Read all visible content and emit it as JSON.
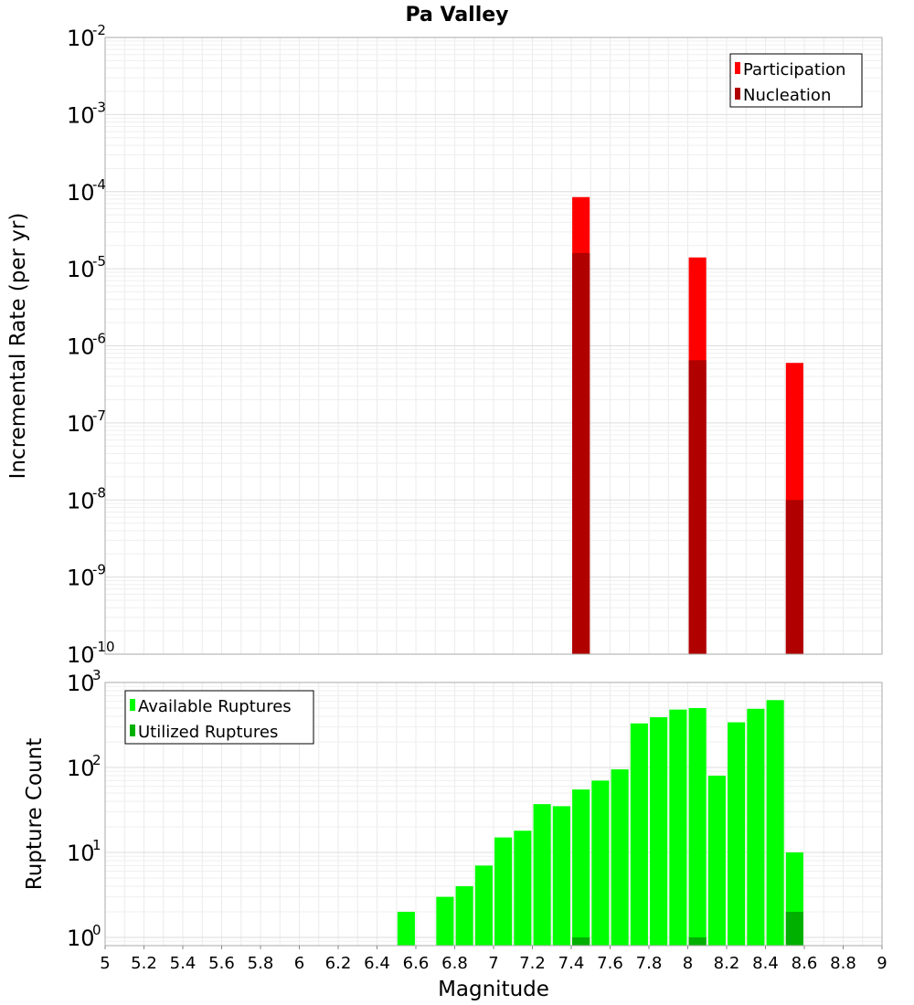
{
  "chart_data": [
    {
      "type": "bar",
      "title": "Pa Valley",
      "ylabel": "Incremental Rate (per yr)",
      "yscale": "log",
      "ylim": [
        1e-10,
        0.01
      ],
      "xlim": [
        5,
        9
      ],
      "y_tick_labels": [
        {
          "base": "10",
          "exp": "-2"
        },
        {
          "base": "10",
          "exp": "-3"
        },
        {
          "base": "10",
          "exp": "-4"
        },
        {
          "base": "10",
          "exp": "-5"
        },
        {
          "base": "10",
          "exp": "-6"
        },
        {
          "base": "10",
          "exp": "-7"
        },
        {
          "base": "10",
          "exp": "-8"
        },
        {
          "base": "10",
          "exp": "-9"
        },
        {
          "base": "10",
          "exp": "-10"
        }
      ],
      "bar_width": 0.09,
      "grid": true,
      "legend_position": "top-right",
      "series": [
        {
          "name": "Participation",
          "color": "#ff0000",
          "x": [
            7.45,
            8.05,
            8.55
          ],
          "values": [
            8.5e-05,
            1.4e-05,
            6e-07
          ]
        },
        {
          "name": "Nucleation",
          "color": "#b00000",
          "x": [
            7.45,
            8.05,
            8.55
          ],
          "values": [
            1.6e-05,
            6.5e-07,
            1e-08
          ]
        }
      ]
    },
    {
      "type": "bar",
      "xlabel": "Magnitude",
      "ylabel": "Rupture Count",
      "yscale": "log",
      "ylim": [
        0.8,
        1000
      ],
      "xlim": [
        5,
        9
      ],
      "x_ticks": [
        "5",
        "5.2",
        "5.4",
        "5.6",
        "5.8",
        "6",
        "6.2",
        "6.4",
        "6.6",
        "6.8",
        "7",
        "7.2",
        "7.4",
        "7.6",
        "7.8",
        "8",
        "8.2",
        "8.4",
        "8.6",
        "8.8",
        "9"
      ],
      "y_tick_labels": [
        {
          "base": "10",
          "exp": "3"
        },
        {
          "base": "10",
          "exp": "2"
        },
        {
          "base": "10",
          "exp": "1"
        },
        {
          "base": "10",
          "exp": "0"
        }
      ],
      "bar_width": 0.09,
      "grid": true,
      "legend_position": "top-left",
      "series": [
        {
          "name": "Available Ruptures",
          "color": "#00ff00",
          "x": [
            6.55,
            6.75,
            6.85,
            6.95,
            7.05,
            7.15,
            7.25,
            7.35,
            7.45,
            7.55,
            7.65,
            7.75,
            7.85,
            7.95,
            8.05,
            8.15,
            8.25,
            8.35,
            8.45,
            8.55
          ],
          "values": [
            2,
            3,
            4,
            7,
            15,
            18,
            37,
            35,
            55,
            70,
            95,
            330,
            390,
            480,
            500,
            80,
            340,
            490,
            620,
            10
          ]
        },
        {
          "name": "Utilized Ruptures",
          "color": "#00b000",
          "x": [
            7.45,
            8.05,
            8.55
          ],
          "values": [
            1,
            1,
            2
          ]
        }
      ]
    }
  ]
}
